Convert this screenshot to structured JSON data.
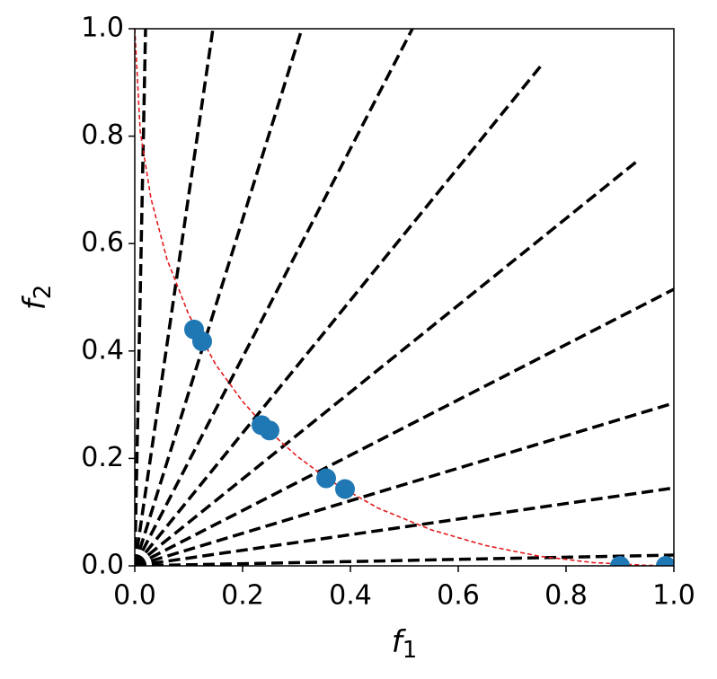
{
  "chart_data": {
    "type": "scatter",
    "xlim": [
      0,
      1
    ],
    "ylim": [
      0,
      1
    ],
    "xticks": [
      {
        "value": 0,
        "label": "0.0"
      },
      0.2,
      0.4,
      0.6,
      0.8,
      {
        "value": 1,
        "label": "1.0"
      }
    ],
    "yticks": [
      {
        "value": 0,
        "label": "0.0"
      },
      0.2,
      0.4,
      0.6,
      0.8,
      {
        "value": 1,
        "label": "1.0"
      }
    ],
    "xlabel": {
      "symbol": "f",
      "subscript": "1"
    },
    "ylabel": {
      "symbol": "f",
      "subscript": "2"
    },
    "series": [
      {
        "type": "line",
        "color": "#000000",
        "style": "dashed",
        "x": [
          0,
          0.02
        ],
        "values": [
          0,
          1
        ]
      },
      {
        "type": "line",
        "color": "#000000",
        "style": "dashed",
        "x": [
          0,
          0.145
        ],
        "values": [
          0,
          1
        ]
      },
      {
        "type": "line",
        "color": "#000000",
        "style": "dashed",
        "x": [
          0,
          0.31
        ],
        "values": [
          0,
          1
        ]
      },
      {
        "type": "line",
        "color": "#000000",
        "style": "dashed",
        "x": [
          0,
          0.515
        ],
        "values": [
          0,
          1
        ]
      },
      {
        "type": "line",
        "color": "#000000",
        "style": "dashed",
        "x": [
          0,
          0.755
        ],
        "values": [
          0,
          0.933
        ]
      },
      {
        "type": "line",
        "color": "#000000",
        "style": "dashed",
        "x": [
          0,
          0.93
        ],
        "values": [
          0,
          0.752
        ]
      },
      {
        "type": "line",
        "color": "#000000",
        "style": "dashed",
        "x": [
          0,
          1
        ],
        "values": [
          0,
          0.515
        ]
      },
      {
        "type": "line",
        "color": "#000000",
        "style": "dashed",
        "x": [
          0,
          1
        ],
        "values": [
          0,
          0.303
        ]
      },
      {
        "type": "line",
        "color": "#000000",
        "style": "dashed",
        "x": [
          0,
          1
        ],
        "values": [
          0,
          0.145
        ]
      },
      {
        "type": "line",
        "color": "#000000",
        "style": "dashed",
        "x": [
          0,
          1
        ],
        "values": [
          0,
          0.02
        ]
      },
      {
        "type": "line",
        "color": "#e41a1c",
        "style": "thin-dashed",
        "x": [
          0,
          0.01,
          0.03,
          0.06,
          0.1,
          0.15,
          0.2,
          0.25,
          0.3,
          0.36,
          0.45,
          0.55,
          0.65,
          0.75,
          0.85,
          0.95,
          1
        ],
        "values": [
          1,
          0.81,
          0.684,
          0.57,
          0.468,
          0.375,
          0.306,
          0.25,
          0.205,
          0.16,
          0.108,
          0.067,
          0.038,
          0.018,
          0.006,
          0.001,
          0
        ]
      },
      {
        "type": "scatter",
        "color": "#1f77b4",
        "x": [
          0.11,
          0.125,
          0.235,
          0.25,
          0.355,
          0.39,
          0.9,
          0.985
        ],
        "values": [
          0.44,
          0.418,
          0.262,
          0.252,
          0.163,
          0.143,
          0.0,
          0.0
        ]
      }
    ]
  }
}
